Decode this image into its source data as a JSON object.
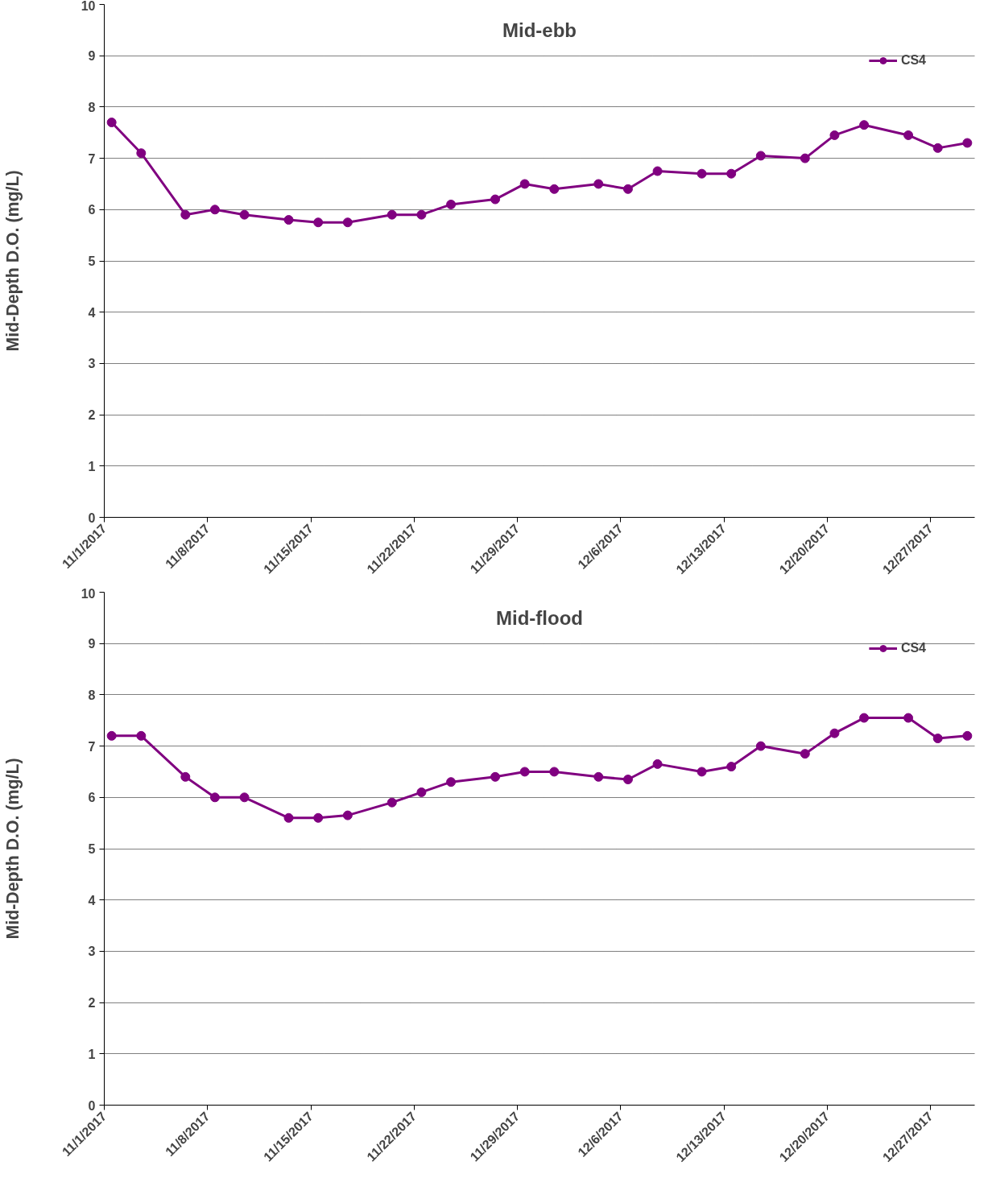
{
  "chart_data": [
    {
      "type": "line",
      "title": "Mid-ebb",
      "ylabel": "Mid-Depth D.O. (mg/L)",
      "x": [
        "2017-11-01T12:00",
        "2017-11-03T12:00",
        "2017-11-06T12:00",
        "2017-11-08T12:00",
        "2017-11-10T12:00",
        "2017-11-13T12:00",
        "2017-11-15T12:00",
        "2017-11-17T12:00",
        "2017-11-20T12:00",
        "2017-11-22T12:00",
        "2017-11-24T12:00",
        "2017-11-27T12:00",
        "2017-11-29T12:00",
        "2017-12-01T12:00",
        "2017-12-04T12:00",
        "2017-12-06T12:00",
        "2017-12-08T12:00",
        "2017-12-11T12:00",
        "2017-12-13T12:00",
        "2017-12-15T12:00",
        "2017-12-18T12:00",
        "2017-12-20T12:00",
        "2017-12-22T12:00",
        "2017-12-25T12:00",
        "2017-12-27T12:00",
        "2017-12-29T12:00"
      ],
      "series": [
        {
          "name": "CS4",
          "color": "#800080",
          "values": [
            7.7,
            7.1,
            5.9,
            6.0,
            5.9,
            5.8,
            5.75,
            5.75,
            5.9,
            5.9,
            6.1,
            6.2,
            6.5,
            6.4,
            6.5,
            6.4,
            6.75,
            6.7,
            6.7,
            7.05,
            7.0,
            7.45,
            7.65,
            7.45,
            7.2,
            7.3
          ]
        }
      ],
      "xlim": [
        "2017-11-01",
        "2017-12-30"
      ],
      "xticks": [
        {
          "value": "2017-11-01",
          "label": "11/1/2017"
        },
        {
          "value": "2017-11-08",
          "label": "11/8/2017"
        },
        {
          "value": "2017-11-15",
          "label": "11/15/2017"
        },
        {
          "value": "2017-11-22",
          "label": "11/22/2017"
        },
        {
          "value": "2017-11-29",
          "label": "11/29/2017"
        },
        {
          "value": "2017-12-06",
          "label": "12/6/2017"
        },
        {
          "value": "2017-12-13",
          "label": "12/13/2017"
        },
        {
          "value": "2017-12-20",
          "label": "12/20/2017"
        },
        {
          "value": "2017-12-27",
          "label": "12/27/2017"
        }
      ],
      "ylim": [
        0,
        10
      ],
      "yticks": [
        0,
        1,
        2,
        3,
        4,
        5,
        6,
        7,
        8,
        9,
        10
      ],
      "grid": "y",
      "legend": "top right",
      "marker": "circle",
      "line_style": "solid"
    },
    {
      "type": "line",
      "title": "Mid-flood",
      "ylabel": "Mid-Depth D.O. (mg/L)",
      "x": [
        "2017-11-01T12:00",
        "2017-11-03T12:00",
        "2017-11-06T12:00",
        "2017-11-08T12:00",
        "2017-11-10T12:00",
        "2017-11-13T12:00",
        "2017-11-15T12:00",
        "2017-11-17T12:00",
        "2017-11-20T12:00",
        "2017-11-22T12:00",
        "2017-11-24T12:00",
        "2017-11-27T12:00",
        "2017-11-29T12:00",
        "2017-12-01T12:00",
        "2017-12-04T12:00",
        "2017-12-06T12:00",
        "2017-12-08T12:00",
        "2017-12-11T12:00",
        "2017-12-13T12:00",
        "2017-12-15T12:00",
        "2017-12-18T12:00",
        "2017-12-20T12:00",
        "2017-12-22T12:00",
        "2017-12-25T12:00",
        "2017-12-27T12:00",
        "2017-12-29T12:00"
      ],
      "series": [
        {
          "name": "CS4",
          "color": "#800080",
          "values": [
            7.2,
            7.2,
            6.4,
            6.0,
            6.0,
            5.6,
            5.6,
            5.65,
            5.9,
            6.1,
            6.3,
            6.4,
            6.5,
            6.5,
            6.4,
            6.35,
            6.65,
            6.5,
            6.6,
            7.0,
            6.85,
            7.25,
            7.55,
            7.55,
            7.15,
            7.2
          ]
        }
      ],
      "xlim": [
        "2017-11-01",
        "2017-12-30"
      ],
      "xticks": [
        {
          "value": "2017-11-01",
          "label": "11/1/2017"
        },
        {
          "value": "2017-11-08",
          "label": "11/8/2017"
        },
        {
          "value": "2017-11-15",
          "label": "11/15/2017"
        },
        {
          "value": "2017-11-22",
          "label": "11/22/2017"
        },
        {
          "value": "2017-11-29",
          "label": "11/29/2017"
        },
        {
          "value": "2017-12-06",
          "label": "12/6/2017"
        },
        {
          "value": "2017-12-13",
          "label": "12/13/2017"
        },
        {
          "value": "2017-12-20",
          "label": "12/20/2017"
        },
        {
          "value": "2017-12-27",
          "label": "12/27/2017"
        }
      ],
      "ylim": [
        0,
        10
      ],
      "yticks": [
        0,
        1,
        2,
        3,
        4,
        5,
        6,
        7,
        8,
        9,
        10
      ],
      "grid": "y",
      "legend": "top right",
      "marker": "circle",
      "line_style": "solid"
    }
  ]
}
